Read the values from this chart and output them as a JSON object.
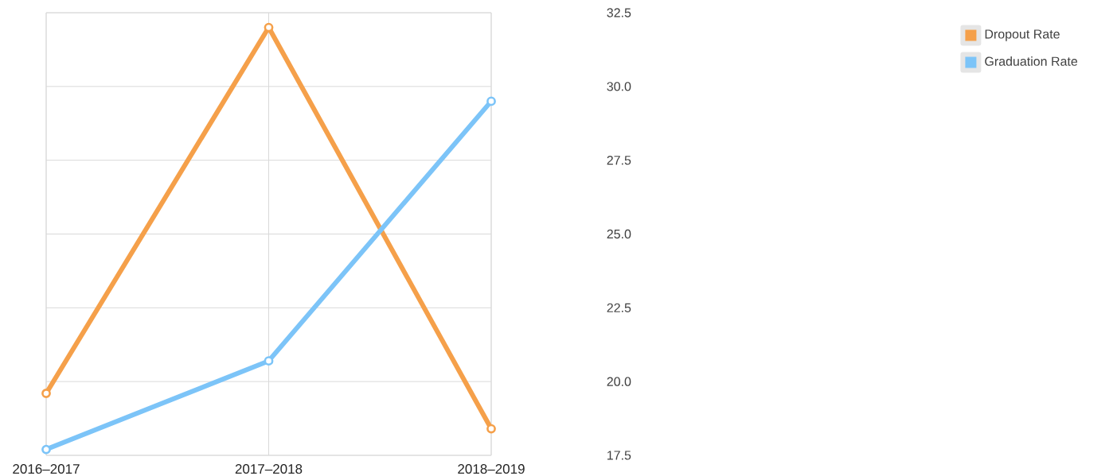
{
  "chart_data": {
    "type": "line",
    "categories": [
      "2016–2017",
      "2017–2018",
      "2018–2019"
    ],
    "series": [
      {
        "name": "Dropout Rate",
        "color": "#f5a04a",
        "values": [
          19.6,
          32.0,
          18.4
        ]
      },
      {
        "name": "Graduation Rate",
        "color": "#7cc4f8",
        "values": [
          17.7,
          20.7,
          29.5
        ]
      }
    ],
    "ylim": [
      17.5,
      32.5
    ],
    "yticks": [
      {
        "value": 17.5,
        "label": "17.5"
      },
      {
        "value": 20,
        "label": "20.0"
      },
      {
        "value": 22.5,
        "label": "22.5"
      },
      {
        "value": 25,
        "label": "25.0"
      },
      {
        "value": 27.5,
        "label": "27.5"
      },
      {
        "value": 30,
        "label": "30.0"
      },
      {
        "value": 32.5,
        "label": "32.5"
      }
    ],
    "grid": true,
    "legend": "top right",
    "marker": "circle",
    "line_style": "solid"
  }
}
